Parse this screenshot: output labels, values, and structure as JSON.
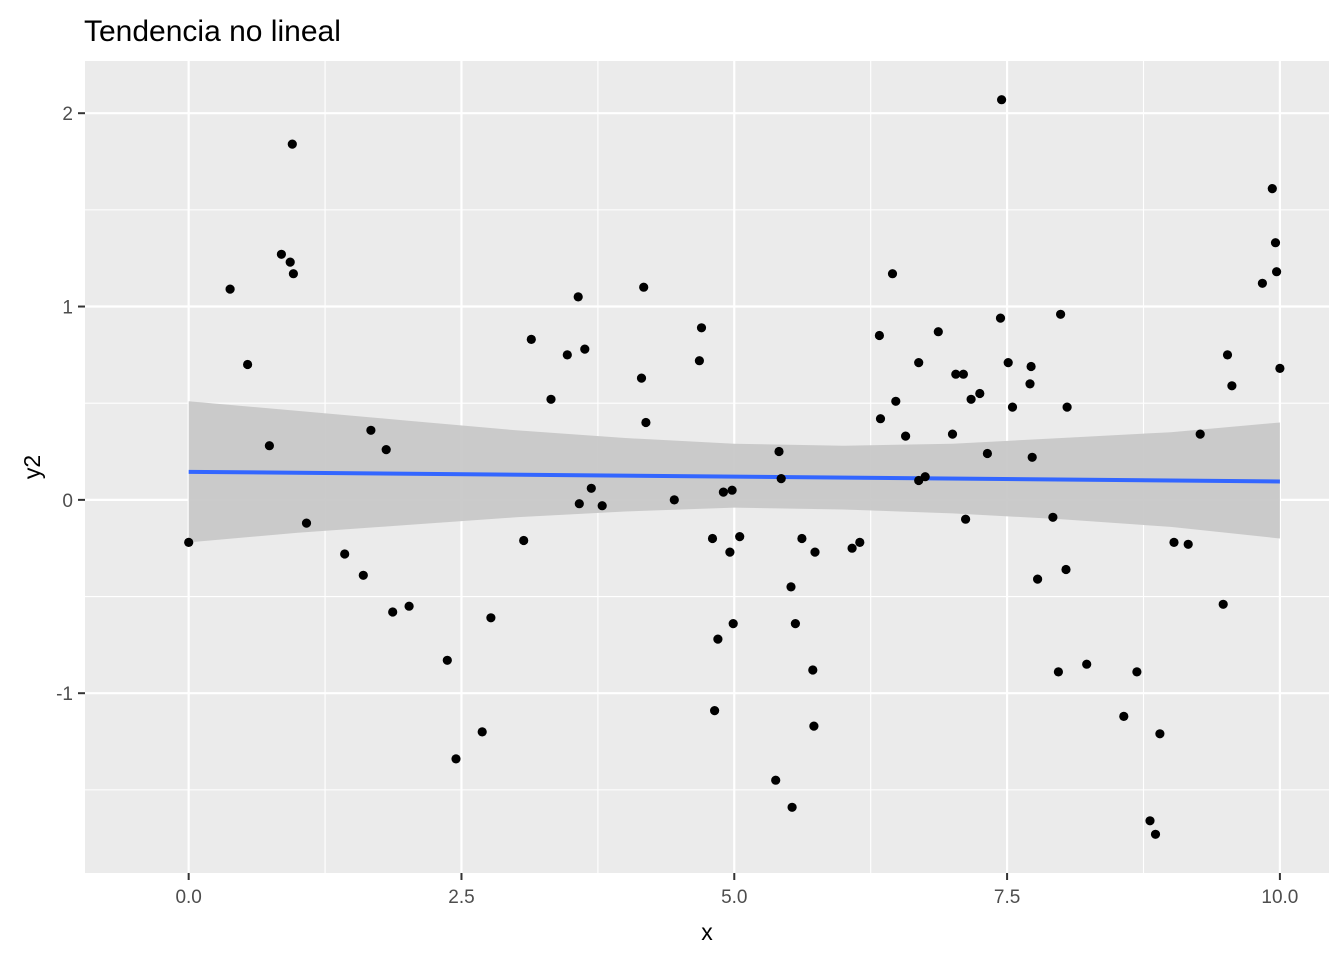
{
  "chart_data": {
    "type": "scatter",
    "title": "Tendencia no lineal",
    "xlabel": "x",
    "ylabel": "y2",
    "xlim": [
      -0.95,
      10.45
    ],
    "ylim": [
      -1.93,
      2.27
    ],
    "x_ticks": [
      0,
      2.5,
      5,
      7.5,
      10
    ],
    "x_tick_labels": [
      "0.0",
      "2.5",
      "5.0",
      "7.5",
      "10.0"
    ],
    "y_ticks": [
      -1,
      0,
      1,
      2
    ],
    "y_tick_labels": [
      "-1",
      "0",
      "1",
      "2"
    ],
    "grid": true,
    "legend": "none",
    "colors": {
      "panel": "#ebebeb",
      "grid": "#ffffff",
      "points": "#000000",
      "trend_line": "#3366ff",
      "confidence_band": "#c8c8c8"
    },
    "trend_line": {
      "method": "lm",
      "x": [
        0,
        10
      ],
      "y": [
        0.145,
        0.095
      ],
      "ci_lower": [
        -0.22,
        -0.2
      ],
      "ci_upper": [
        0.51,
        0.4
      ],
      "band_x": [
        0,
        1,
        2,
        3,
        4,
        5,
        6,
        7,
        8,
        9,
        10
      ],
      "band_lower": [
        -0.22,
        -0.17,
        -0.13,
        -0.09,
        -0.06,
        -0.04,
        -0.05,
        -0.07,
        -0.1,
        -0.14,
        -0.2
      ],
      "band_upper": [
        0.51,
        0.46,
        0.41,
        0.36,
        0.32,
        0.29,
        0.28,
        0.29,
        0.32,
        0.35,
        0.4
      ]
    },
    "points": {
      "x": [
        0.0,
        0.38,
        0.54,
        0.74,
        0.85,
        0.93,
        0.95,
        0.96,
        1.08,
        1.43,
        1.6,
        1.67,
        1.81,
        1.87,
        2.02,
        2.37,
        2.45,
        2.69,
        2.77,
        3.07,
        3.14,
        3.32,
        3.47,
        3.57,
        3.58,
        3.63,
        3.69,
        3.79,
        4.15,
        4.17,
        4.19,
        4.45,
        4.68,
        4.7,
        4.8,
        4.82,
        4.85,
        4.9,
        4.96,
        4.98,
        4.99,
        5.05,
        5.38,
        5.41,
        5.43,
        5.52,
        5.53,
        5.56,
        5.62,
        5.72,
        5.73,
        5.74,
        6.08,
        6.15,
        6.33,
        6.34,
        6.45,
        6.48,
        6.57,
        6.69,
        6.69,
        6.75,
        6.87,
        7.0,
        7.03,
        7.1,
        7.12,
        7.17,
        7.25,
        7.32,
        7.44,
        7.45,
        7.51,
        7.55,
        7.71,
        7.72,
        7.73,
        7.78,
        7.92,
        7.97,
        7.99,
        8.04,
        8.05,
        8.23,
        8.57,
        8.69,
        8.81,
        8.86,
        8.9,
        9.03,
        9.16,
        9.27,
        9.48,
        9.52,
        9.56,
        9.84,
        9.93,
        9.96,
        9.97,
        10.0
      ],
      "y": [
        -0.22,
        1.09,
        0.7,
        0.28,
        1.27,
        1.23,
        1.84,
        1.17,
        -0.12,
        -0.28,
        -0.39,
        0.36,
        0.26,
        -0.58,
        -0.55,
        -0.83,
        -1.34,
        -1.2,
        -0.61,
        -0.21,
        0.83,
        0.52,
        0.75,
        1.05,
        -0.02,
        0.78,
        0.06,
        -0.03,
        0.63,
        1.1,
        0.4,
        0.0,
        0.72,
        0.89,
        -0.2,
        -1.09,
        -0.72,
        0.04,
        -0.27,
        0.05,
        -0.64,
        -0.19,
        -1.45,
        0.25,
        0.11,
        -0.45,
        -1.59,
        -0.64,
        -0.2,
        -0.88,
        -1.17,
        -0.27,
        -0.25,
        -0.22,
        0.85,
        0.42,
        1.17,
        0.51,
        0.33,
        0.71,
        0.1,
        0.12,
        0.87,
        0.34,
        0.65,
        0.65,
        -0.1,
        0.52,
        0.55,
        0.24,
        0.94,
        2.07,
        0.71,
        0.48,
        0.6,
        0.69,
        0.22,
        -0.41,
        -0.09,
        -0.89,
        0.96,
        -0.36,
        0.48,
        -0.85,
        -1.12,
        -0.89,
        -1.66,
        -1.73,
        -1.21,
        -0.22,
        -0.23,
        0.34,
        -0.54,
        0.75,
        0.59,
        1.12,
        1.61,
        1.33,
        1.18,
        0.68
      ]
    }
  }
}
